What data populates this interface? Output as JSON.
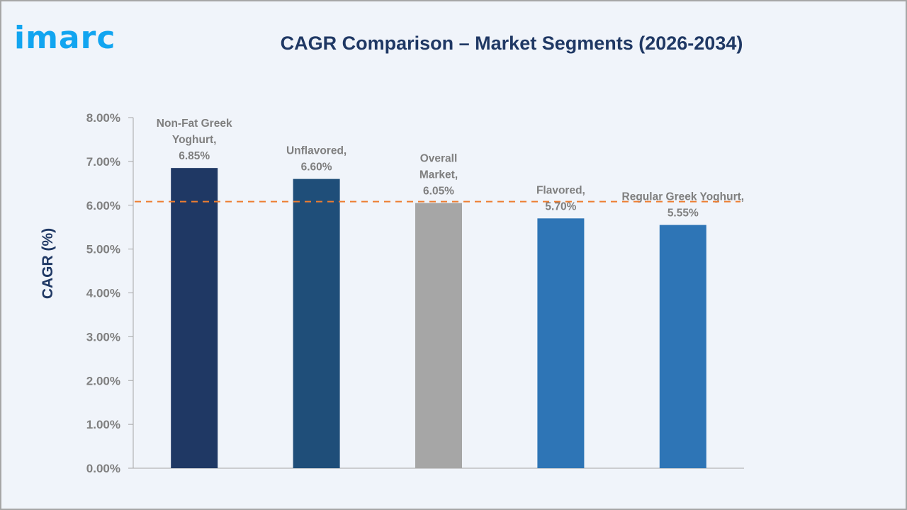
{
  "logo_text": "imarc",
  "chart_data": {
    "type": "bar",
    "title": "CAGR Comparison – Market Segments (2026-2034)",
    "xlabel": "",
    "ylabel": "CAGR (%)",
    "ylim": [
      0,
      8
    ],
    "yticks": [
      "0.00%",
      "1.00%",
      "2.00%",
      "3.00%",
      "4.00%",
      "5.00%",
      "6.00%",
      "7.00%",
      "8.00%"
    ],
    "grid": false,
    "categories": [
      "Non-Fat Greek Yoghurt",
      "Unflavored",
      "Overall Market",
      "Flavored",
      "Regular Greek Yoghurt"
    ],
    "values": [
      6.85,
      6.6,
      6.05,
      5.7,
      5.55
    ],
    "data_labels": [
      [
        "Non-Fat Greek",
        "Yoghurt,",
        "6.85%"
      ],
      [
        "Unflavored,",
        "6.60%"
      ],
      [
        "Overall",
        "Market,",
        "6.05%"
      ],
      [
        "Flavored,",
        "5.70%"
      ],
      [
        "Regular Greek Yoghurt,",
        "5.55%"
      ]
    ],
    "colors": [
      "#1f3864",
      "#1f4e79",
      "#a6a6a6",
      "#2e75b6",
      "#2e75b6"
    ],
    "reference_line": {
      "value": 6.05,
      "style": "dashed",
      "color": "#ed7d31"
    }
  }
}
